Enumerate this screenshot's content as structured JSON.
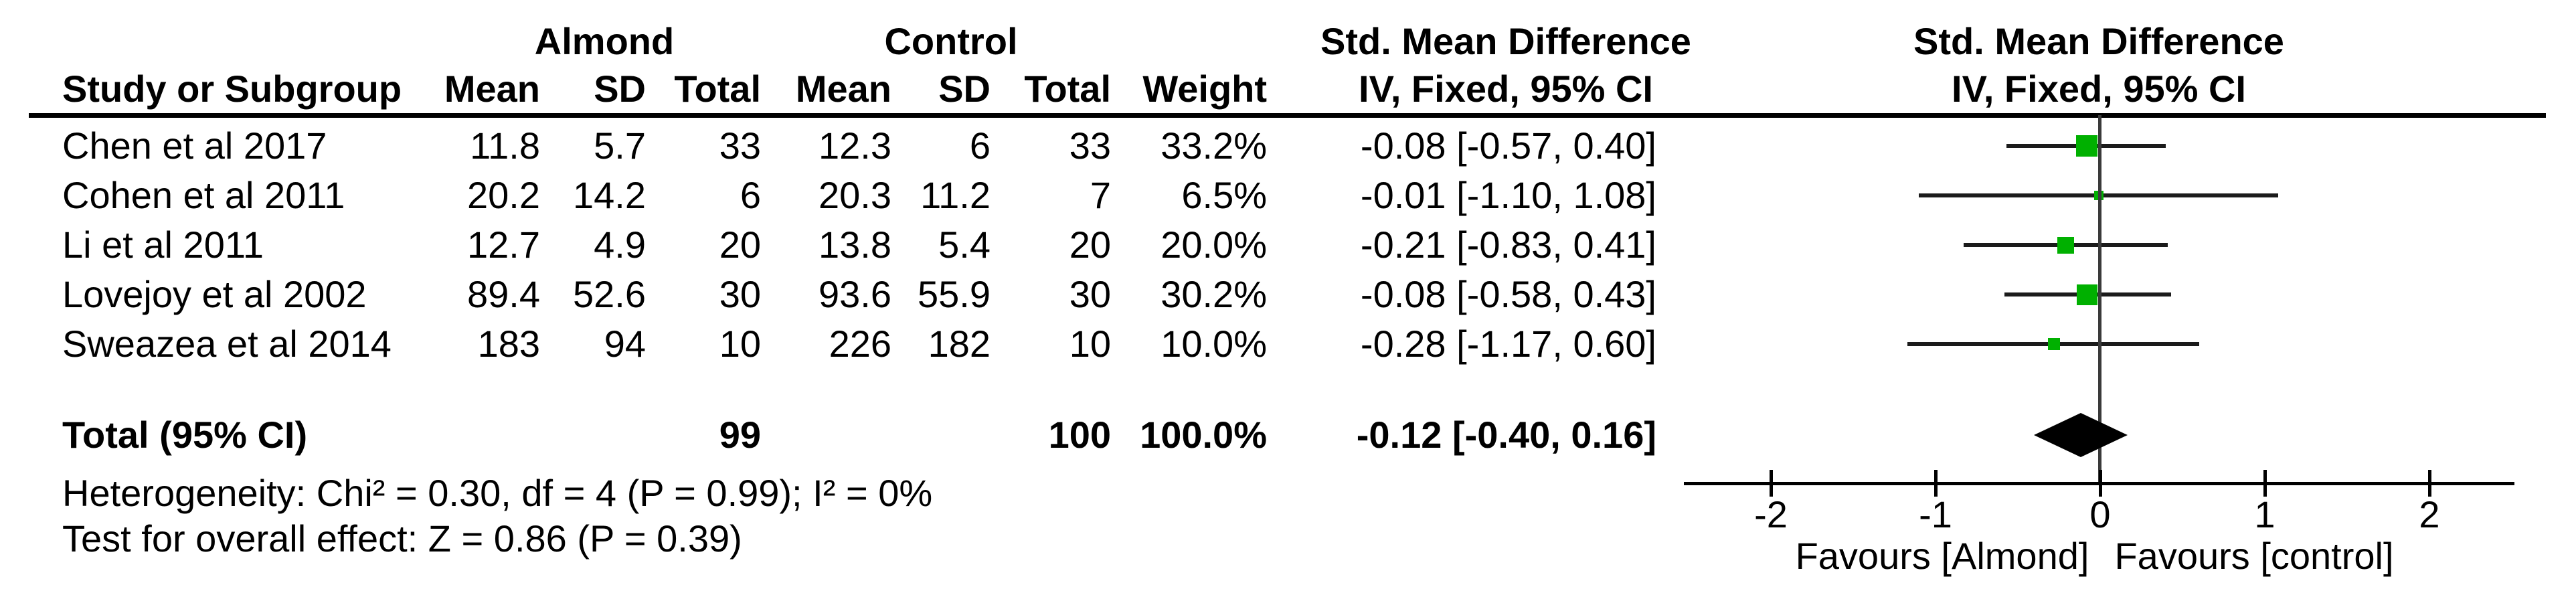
{
  "table": {
    "group1_label": "Almond",
    "group2_label": "Control",
    "columns": {
      "study": "Study or Subgroup",
      "mean": "Mean",
      "sd": "SD",
      "total": "Total",
      "weight": "Weight"
    },
    "smd_header": {
      "line1": "Std. Mean Difference",
      "line2": "IV, Fixed, 95% CI"
    },
    "studies": [
      {
        "name": "Chen et al 2017",
        "mean1": "11.8",
        "sd1": "5.7",
        "n1": "33",
        "mean2": "12.3",
        "sd2": "6",
        "n2": "33",
        "weight": "33.2%",
        "smd": "-0.08 [-0.57, 0.40]"
      },
      {
        "name": "Cohen et al 2011",
        "mean1": "20.2",
        "sd1": "14.2",
        "n1": "6",
        "mean2": "20.3",
        "sd2": "11.2",
        "n2": "7",
        "weight": "6.5%",
        "smd": "-0.01 [-1.10, 1.08]"
      },
      {
        "name": "Li et al 2011",
        "mean1": "12.7",
        "sd1": "4.9",
        "n1": "20",
        "mean2": "13.8",
        "sd2": "5.4",
        "n2": "20",
        "weight": "20.0%",
        "smd": "-0.21 [-0.83, 0.41]"
      },
      {
        "name": "Lovejoy et al 2002",
        "mean1": "89.4",
        "sd1": "52.6",
        "n1": "30",
        "mean2": "93.6",
        "sd2": "55.9",
        "n2": "30",
        "weight": "30.2%",
        "smd": "-0.08 [-0.58, 0.43]"
      },
      {
        "name": "Sweazea et al 2014",
        "mean1": "183",
        "sd1": "94",
        "n1": "10",
        "mean2": "226",
        "sd2": "182",
        "n2": "10",
        "weight": "10.0%",
        "smd": "-0.28 [-1.17, 0.60]"
      }
    ],
    "total": {
      "label": "Total (95% CI)",
      "n1": "99",
      "n2": "100",
      "weight": "100.0%",
      "smd": "-0.12 [-0.40, 0.16]"
    },
    "footer": {
      "heterogeneity": "Heterogeneity: Chi² = 0.30, df = 4 (P = 0.99); I² = 0%",
      "overall": "Test for overall effect: Z = 0.86 (P = 0.39)"
    }
  },
  "plot": {
    "header_line1": "Std. Mean Difference",
    "header_line2": "IV, Fixed, 95% CI",
    "favours_left": "Favours [Almond]",
    "favours_right": "Favours [control]",
    "colors": {
      "square": "#00b000",
      "ci_line": "#1b1b1b",
      "zero_line": "#3a3a3a",
      "axis": "#000000",
      "diamond": "#000000"
    }
  },
  "chart_data": {
    "type": "scatter",
    "title": "Forest plot: Std. Mean Difference, IV, Fixed, 95% CI (Almond vs Control)",
    "xlabel": "Std. Mean Difference",
    "xticks": [
      -2,
      -1,
      0,
      1,
      2
    ],
    "xlim": [
      -2.55,
      2.55
    ],
    "legend_left": "Favours [Almond]",
    "legend_right": "Favours [control]",
    "series": [
      {
        "name": "Chen et al 2017",
        "est": -0.08,
        "ci": [
          -0.57,
          0.4
        ],
        "weight_pct": 33.2
      },
      {
        "name": "Cohen et al 2011",
        "est": -0.01,
        "ci": [
          -1.1,
          1.08
        ],
        "weight_pct": 6.5
      },
      {
        "name": "Li et al 2011",
        "est": -0.21,
        "ci": [
          -0.83,
          0.41
        ],
        "weight_pct": 20.0
      },
      {
        "name": "Lovejoy et al 2002",
        "est": -0.08,
        "ci": [
          -0.58,
          0.43
        ],
        "weight_pct": 30.2
      },
      {
        "name": "Sweazea et al 2014",
        "est": -0.28,
        "ci": [
          -1.17,
          0.6
        ],
        "weight_pct": 10.0
      }
    ],
    "total": {
      "name": "Total (95% CI)",
      "est": -0.12,
      "ci": [
        -0.4,
        0.16
      ],
      "weight_pct": 100.0
    },
    "heterogeneity": {
      "chi2": 0.3,
      "df": 4,
      "p": 0.99,
      "i2_pct": 0
    },
    "overall_effect": {
      "z": 0.86,
      "p": 0.39
    }
  }
}
